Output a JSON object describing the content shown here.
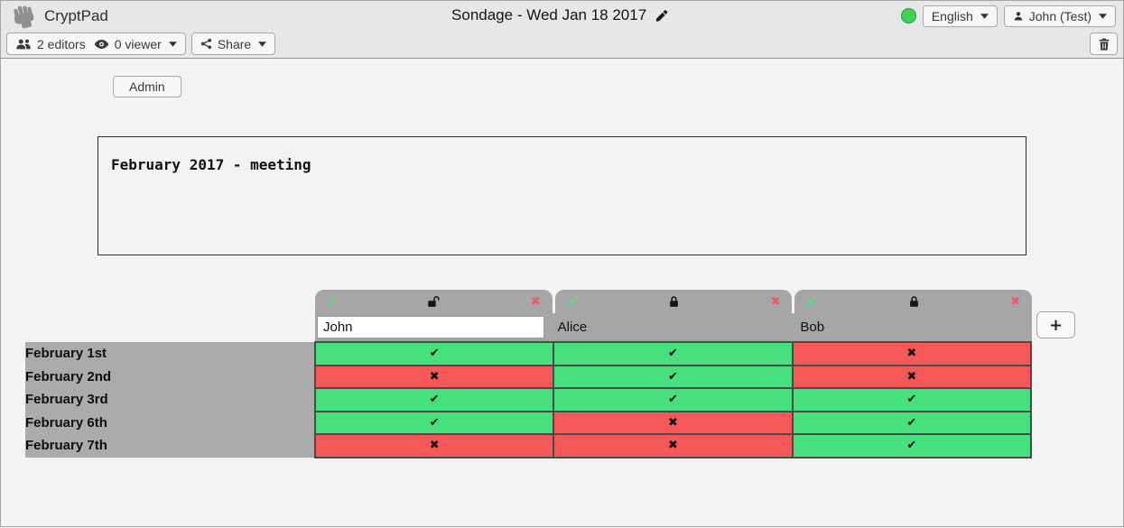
{
  "titlebar": {
    "app_name": "CryptPad",
    "doc_title": "Sondage - Wed Jan 18 2017",
    "language_label": "English",
    "user_label": "John (Test)"
  },
  "toolbar": {
    "editors_label": "2 editors",
    "viewer_label": "0 viewer",
    "share_label": "Share"
  },
  "content": {
    "admin_button_label": "Admin",
    "description_text": "February 2017 - meeting"
  },
  "poll": {
    "add_column_label": "+",
    "yes_glyph": "✔",
    "no_glyph": "✖",
    "remove_glyph": "✖",
    "columns": [
      {
        "name": "John",
        "editable": true,
        "locked": false
      },
      {
        "name": "Alice",
        "editable": false,
        "locked": true
      },
      {
        "name": "Bob",
        "editable": false,
        "locked": true
      }
    ],
    "rows": [
      {
        "label": "February 1st",
        "votes": [
          "yes",
          "yes",
          "no"
        ]
      },
      {
        "label": "February 2nd",
        "votes": [
          "no",
          "yes",
          "no"
        ]
      },
      {
        "label": "February 3rd",
        "votes": [
          "yes",
          "yes",
          "yes"
        ]
      },
      {
        "label": "February 6th",
        "votes": [
          "yes",
          "no",
          "yes"
        ]
      },
      {
        "label": "February 7th",
        "votes": [
          "no",
          "no",
          "yes"
        ]
      }
    ]
  },
  "icons": {
    "logo": "raised-fist",
    "edit_column": "green-pencil",
    "title_edit": "pencil",
    "editors": "users",
    "viewers": "eye",
    "share": "share-nodes",
    "user": "person",
    "delete": "trash",
    "locked": "closed-padlock",
    "unlocked": "open-padlock",
    "dropdown": "caret-down"
  },
  "colors": {
    "yes_green": "#46e17d",
    "no_red": "#f65757",
    "status_green": "#3ed156",
    "tab_gray": "#a6a6a6",
    "label_gray": "#ababab",
    "cell_border": "#4a4a4a"
  }
}
